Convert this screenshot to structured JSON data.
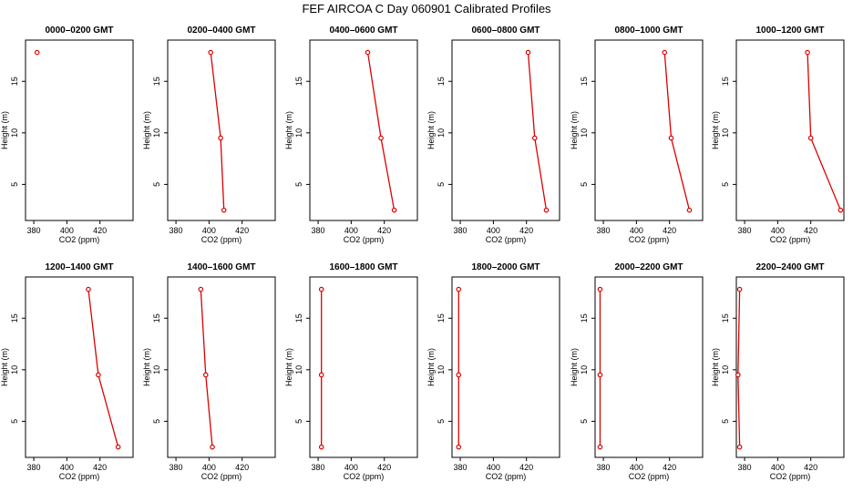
{
  "figure": {
    "title": "FEF AIRCOA C  Day 060901  Calibrated Profiles"
  },
  "chart_data": [
    {
      "type": "line",
      "title": "0000–0200 GMT",
      "xlabel": "CO2 (ppm)",
      "ylabel": "Height (m)",
      "xlim": [
        375,
        440
      ],
      "ylim": [
        1.5,
        19
      ],
      "xticks": [
        380,
        400,
        420
      ],
      "yticks": [
        5,
        10,
        15
      ],
      "color": "#dd0000",
      "series": [
        {
          "points": [
            {
              "x": 382,
              "y": 17.8
            }
          ]
        }
      ]
    },
    {
      "type": "line",
      "title": "0200–0400 GMT",
      "xlabel": "CO2 (ppm)",
      "ylabel": "Height (m)",
      "xlim": [
        375,
        440
      ],
      "ylim": [
        1.5,
        19
      ],
      "xticks": [
        380,
        400,
        420
      ],
      "yticks": [
        5,
        10,
        15
      ],
      "color": "#dd0000",
      "series": [
        {
          "points": [
            {
              "x": 401,
              "y": 17.8
            },
            {
              "x": 407,
              "y": 9.5
            },
            {
              "x": 409,
              "y": 2.5
            }
          ]
        }
      ]
    },
    {
      "type": "line",
      "title": "0400–0600 GMT",
      "xlabel": "CO2 (ppm)",
      "ylabel": "Height (m)",
      "xlim": [
        375,
        440
      ],
      "ylim": [
        1.5,
        19
      ],
      "xticks": [
        380,
        400,
        420
      ],
      "yticks": [
        5,
        10,
        15
      ],
      "color": "#dd0000",
      "series": [
        {
          "points": [
            {
              "x": 410,
              "y": 17.8
            },
            {
              "x": 418,
              "y": 9.5
            },
            {
              "x": 426,
              "y": 2.5
            }
          ]
        }
      ]
    },
    {
      "type": "line",
      "title": "0600–0800 GMT",
      "xlabel": "CO2 (ppm)",
      "ylabel": "Height (m)",
      "xlim": [
        375,
        440
      ],
      "ylim": [
        1.5,
        19
      ],
      "xticks": [
        380,
        400,
        420
      ],
      "yticks": [
        5,
        10,
        15
      ],
      "color": "#dd0000",
      "series": [
        {
          "points": [
            {
              "x": 421,
              "y": 17.8
            },
            {
              "x": 425,
              "y": 9.5
            },
            {
              "x": 432,
              "y": 2.5
            }
          ]
        }
      ]
    },
    {
      "type": "line",
      "title": "0800–1000 GMT",
      "xlabel": "CO2 (ppm)",
      "ylabel": "Height (m)",
      "xlim": [
        375,
        440
      ],
      "ylim": [
        1.5,
        19
      ],
      "xticks": [
        380,
        400,
        420
      ],
      "yticks": [
        5,
        10,
        15
      ],
      "color": "#dd0000",
      "series": [
        {
          "points": [
            {
              "x": 417,
              "y": 17.8
            },
            {
              "x": 421,
              "y": 9.5
            },
            {
              "x": 432,
              "y": 2.5
            }
          ]
        }
      ]
    },
    {
      "type": "line",
      "title": "1000–1200 GMT",
      "xlabel": "CO2 (ppm)",
      "ylabel": "Height (m)",
      "xlim": [
        375,
        440
      ],
      "ylim": [
        1.5,
        19
      ],
      "xticks": [
        380,
        400,
        420
      ],
      "yticks": [
        5,
        10,
        15
      ],
      "color": "#dd0000",
      "series": [
        {
          "points": [
            {
              "x": 418,
              "y": 17.8
            },
            {
              "x": 420,
              "y": 9.5
            },
            {
              "x": 438,
              "y": 2.5
            }
          ]
        }
      ]
    },
    {
      "type": "line",
      "title": "1200–1400 GMT",
      "xlabel": "CO2 (ppm)",
      "ylabel": "Height (m)",
      "xlim": [
        375,
        440
      ],
      "ylim": [
        1.5,
        19
      ],
      "xticks": [
        380,
        400,
        420
      ],
      "yticks": [
        5,
        10,
        15
      ],
      "color": "#dd0000",
      "series": [
        {
          "points": [
            {
              "x": 413,
              "y": 17.8
            },
            {
              "x": 419,
              "y": 9.5
            },
            {
              "x": 431,
              "y": 2.5
            }
          ]
        }
      ]
    },
    {
      "type": "line",
      "title": "1400–1600 GMT",
      "xlabel": "CO2 (ppm)",
      "ylabel": "Height (m)",
      "xlim": [
        375,
        440
      ],
      "ylim": [
        1.5,
        19
      ],
      "xticks": [
        380,
        400,
        420
      ],
      "yticks": [
        5,
        10,
        15
      ],
      "color": "#dd0000",
      "series": [
        {
          "points": [
            {
              "x": 395,
              "y": 17.8
            },
            {
              "x": 398,
              "y": 9.5
            },
            {
              "x": 402,
              "y": 2.5
            }
          ]
        }
      ]
    },
    {
      "type": "line",
      "title": "1600–1800 GMT",
      "xlabel": "CO2 (ppm)",
      "ylabel": "Height (m)",
      "xlim": [
        375,
        440
      ],
      "ylim": [
        1.5,
        19
      ],
      "xticks": [
        380,
        400,
        420
      ],
      "yticks": [
        5,
        10,
        15
      ],
      "color": "#dd0000",
      "series": [
        {
          "points": [
            {
              "x": 382,
              "y": 17.8
            },
            {
              "x": 382,
              "y": 9.5
            },
            {
              "x": 382,
              "y": 2.5
            }
          ]
        }
      ]
    },
    {
      "type": "line",
      "title": "1800–2000 GMT",
      "xlabel": "CO2 (ppm)",
      "ylabel": "Height (m)",
      "xlim": [
        375,
        440
      ],
      "ylim": [
        1.5,
        19
      ],
      "xticks": [
        380,
        400,
        420
      ],
      "yticks": [
        5,
        10,
        15
      ],
      "color": "#dd0000",
      "series": [
        {
          "points": [
            {
              "x": 379,
              "y": 17.8
            },
            {
              "x": 379,
              "y": 9.5
            },
            {
              "x": 379,
              "y": 2.5
            }
          ]
        }
      ]
    },
    {
      "type": "line",
      "title": "2000–2200 GMT",
      "xlabel": "CO2 (ppm)",
      "ylabel": "Height (m)",
      "xlim": [
        375,
        440
      ],
      "ylim": [
        1.5,
        19
      ],
      "xticks": [
        380,
        400,
        420
      ],
      "yticks": [
        5,
        10,
        15
      ],
      "color": "#dd0000",
      "series": [
        {
          "points": [
            {
              "x": 378,
              "y": 17.8
            },
            {
              "x": 378,
              "y": 9.5
            },
            {
              "x": 378,
              "y": 2.5
            }
          ]
        }
      ]
    },
    {
      "type": "line",
      "title": "2200–2400 GMT",
      "xlabel": "CO2 (ppm)",
      "ylabel": "Height (m)",
      "xlim": [
        375,
        440
      ],
      "ylim": [
        1.5,
        19
      ],
      "xticks": [
        380,
        400,
        420
      ],
      "yticks": [
        5,
        10,
        15
      ],
      "color": "#dd0000",
      "series": [
        {
          "points": [
            {
              "x": 377,
              "y": 17.8
            },
            {
              "x": 376,
              "y": 9.5
            },
            {
              "x": 377,
              "y": 2.5
            }
          ]
        }
      ]
    }
  ]
}
